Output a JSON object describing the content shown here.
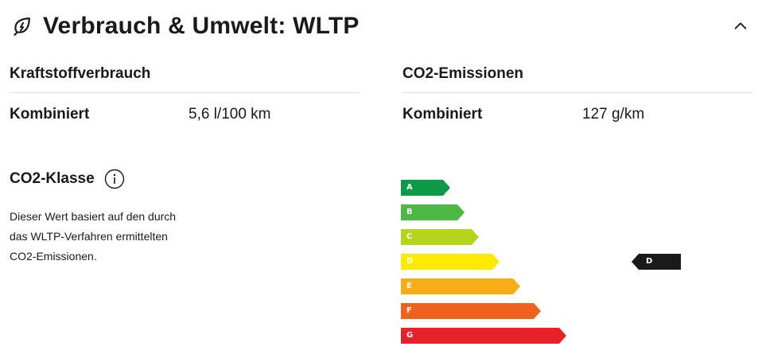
{
  "header": {
    "title": "Verbrauch & Umwelt: WLTP",
    "icon": "leaf-lightning-icon",
    "collapse_icon": "chevron-up-icon"
  },
  "fuel": {
    "heading": "Kraftstoffverbrauch",
    "label": "Kombiniert",
    "value": "5,6 l/100 km"
  },
  "co2": {
    "heading": "CO2-Emissionen",
    "label": "Kombiniert",
    "value": "127 g/km"
  },
  "co2_class": {
    "title": "CO2-Klasse",
    "info_icon": "info-icon",
    "description": "Dieser Wert basiert auf den durch das WLTP-Verfahren ermittelten CO2-Emissionen.",
    "current": "D",
    "classes": [
      {
        "letter": "A",
        "color": "#0a9a48"
      },
      {
        "letter": "B",
        "color": "#4cb944"
      },
      {
        "letter": "C",
        "color": "#b5d41c"
      },
      {
        "letter": "D",
        "color": "#fdea00"
      },
      {
        "letter": "E",
        "color": "#f7ad15"
      },
      {
        "letter": "F",
        "color": "#f0611d"
      },
      {
        "letter": "G",
        "color": "#e8202a"
      }
    ],
    "marker_color": "#1a1a1a"
  }
}
